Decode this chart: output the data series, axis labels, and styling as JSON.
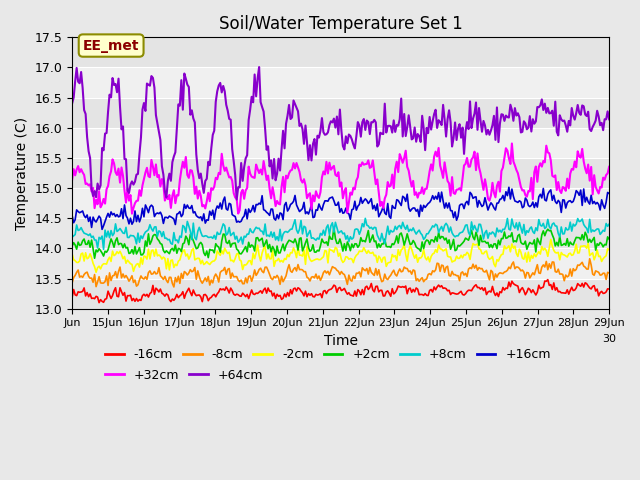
{
  "title": "Soil/Water Temperature Set 1",
  "xlabel": "Time",
  "ylabel": "Temperature (C)",
  "ylim": [
    13.0,
    17.5
  ],
  "annotation": "EE_met",
  "series": {
    "-16cm": {
      "color": "#ff0000",
      "base": 13.2,
      "noise": 0.04
    },
    "-8cm": {
      "color": "#ff8c00",
      "base": 13.5,
      "noise": 0.05
    },
    "-2cm": {
      "color": "#ffff00",
      "base": 13.8,
      "noise": 0.06
    },
    "+2cm": {
      "color": "#00cc00",
      "base": 14.0,
      "noise": 0.06
    },
    "+8cm": {
      "color": "#00cccc",
      "base": 14.2,
      "noise": 0.06
    },
    "+16cm": {
      "color": "#0000cc",
      "base": 14.5,
      "noise": 0.07
    },
    "+32cm": {
      "color": "#ff00ff",
      "base": 15.0,
      "noise": 0.1
    },
    "+64cm": {
      "color": "#8800cc",
      "base": 15.9,
      "noise": 0.15
    }
  },
  "n_points": 360,
  "background_color": "#e8e8e8",
  "plot_bg_color": "#f0f0f0",
  "tick_positions": [
    0,
    1,
    2,
    3,
    4,
    5,
    6,
    7,
    8,
    9,
    10,
    11,
    12,
    13,
    14,
    15
  ],
  "xtick_labels": [
    "Jun",
    "15Jun",
    "16Jun",
    "17Jun",
    "18Jun",
    "19Jun",
    "20Jun",
    "21Jun",
    "22Jun",
    "23Jun",
    "24Jun",
    "25Jun",
    "26Jun",
    "27Jun",
    "28Jun",
    "29Jun"
  ],
  "yticks": [
    13.0,
    13.5,
    14.0,
    14.5,
    15.0,
    15.5,
    16.0,
    16.5,
    17.0,
    17.5
  ],
  "legend_row1": [
    "-16cm",
    "-8cm",
    "-2cm",
    "+2cm",
    "+8cm",
    "+16cm"
  ],
  "legend_row2": [
    "+32cm",
    "+64cm"
  ]
}
